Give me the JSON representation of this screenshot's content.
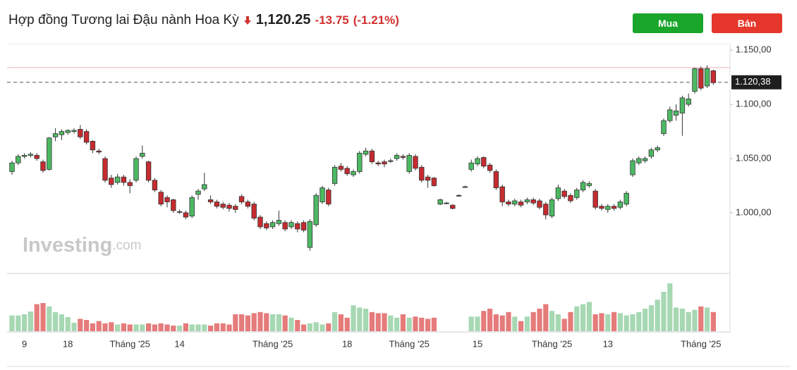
{
  "header": {
    "title": "Hợp đồng Tương lai Đậu nành Hoa Kỳ",
    "price": "1,120.25",
    "change": "-13.75",
    "change_percent": "(-1.21%)"
  },
  "buttons": [
    "Mua",
    "Bán"
  ],
  "watermark": [
    "Investing",
    ".com"
  ],
  "chart_data": {
    "type": "candlestick",
    "categories": [
      null,
      null,
      "9",
      null,
      null,
      null,
      null,
      null,
      null,
      "18",
      null,
      null,
      null,
      null,
      null,
      null,
      null,
      null,
      null,
      "Tháng '25",
      null,
      null,
      null,
      null,
      null,
      null,
      null,
      "14",
      null,
      null,
      null,
      null,
      null,
      null,
      null,
      null,
      null,
      null,
      null,
      null,
      null,
      null,
      "Tháng '25",
      null,
      null,
      null,
      null,
      null,
      null,
      null,
      null,
      null,
      null,
      null,
      "18",
      null,
      null,
      null,
      null,
      null,
      null,
      null,
      null,
      null,
      "Tháng '25",
      null,
      null,
      null,
      null,
      null,
      null,
      null,
      null,
      null,
      null,
      "15",
      null,
      null,
      null,
      null,
      null,
      null,
      null,
      null,
      null,
      null,
      null,
      "Tháng '25",
      null,
      null,
      null,
      null,
      null,
      null,
      null,
      null,
      "13",
      null,
      null,
      null,
      null,
      null,
      null,
      null,
      null,
      null,
      null,
      null,
      null,
      null,
      null,
      "Tháng '25",
      null,
      null
    ],
    "open": [
      1038,
      1046,
      1052,
      1053,
      1053,
      1047,
      1040,
      1070,
      1072,
      1074,
      1075,
      1077,
      1075,
      1066,
      1057,
      1050,
      1032,
      1028,
      1033,
      1028,
      1030,
      1052,
      1047,
      1030,
      1019,
      1014,
      1012,
      1001,
      1000,
      997,
      1017,
      1022,
      1012,
      1010,
      1008,
      1007,
      1006,
      1015,
      1010,
      1008,
      996,
      990,
      987,
      990,
      991,
      987,
      990,
      991,
      968,
      989,
      1010,
      1021,
      1027,
      1043,
      1041,
      1035,
      1038,
      1054,
      1057,
      1046,
      1047,
      1048,
      1050,
      1052,
      1038,
      1052,
      1042,
      1033,
      1032,
      1008,
      1009,
      1007,
      1016,
      1024,
      1040,
      1045,
      1051,
      1044,
      1038,
      1024,
      1010,
      1008,
      1010,
      1010,
      1012,
      1011,
      1008,
      997,
      1013,
      1020,
      1016,
      1014,
      1021,
      1025,
      1020,
      1006,
      1003,
      1006,
      1005,
      1008,
      1035,
      1046,
      1048,
      1052,
      1058,
      1073,
      1085,
      1090,
      1092,
      1100,
      1112,
      1133,
      1117,
      1131
    ],
    "high": [
      1048,
      1054,
      1055,
      1056,
      1055,
      1049,
      1070,
      1078,
      1077,
      1077,
      1078,
      1081,
      1077,
      1067,
      1059,
      1052,
      1035,
      1036,
      1035,
      1031,
      1052,
      1062,
      1048,
      1032,
      1021,
      1016,
      1013,
      1003,
      1002,
      1016,
      1022,
      1037,
      1016,
      1012,
      1010,
      1009,
      1008,
      1017,
      1012,
      1010,
      998,
      992,
      993,
      1002,
      993,
      993,
      992,
      993,
      994,
      1018,
      1025,
      1023,
      1044,
      1046,
      1043,
      1040,
      1057,
      1060,
      1059,
      1048,
      1049,
      1050,
      1055,
      1054,
      1055,
      1054,
      1044,
      1035,
      1033,
      1013,
      1010,
      1008,
      1017,
      1025,
      1049,
      1052,
      1052,
      1046,
      1040,
      1026,
      1012,
      1013,
      1012,
      1014,
      1014,
      1013,
      1010,
      1014,
      1026,
      1022,
      1018,
      1023,
      1030,
      1029,
      1022,
      1008,
      1008,
      1008,
      1012,
      1020,
      1050,
      1052,
      1052,
      1060,
      1062,
      1087,
      1098,
      1100,
      1108,
      1110,
      1134,
      1135,
      1136,
      1132
    ],
    "low": [
      1035,
      1044,
      1050,
      1051,
      1048,
      1037,
      1039,
      1066,
      1067,
      1072,
      1073,
      1068,
      1063,
      1055,
      1054,
      1028,
      1023,
      1026,
      1025,
      1018,
      1028,
      1050,
      1028,
      1019,
      1006,
      1005,
      1000,
      999,
      994,
      995,
      1012,
      1020,
      1008,
      1004,
      1003,
      1001,
      1000,
      1008,
      1004,
      993,
      985,
      984,
      985,
      988,
      983,
      985,
      982,
      982,
      965,
      987,
      1008,
      1006,
      1025,
      1038,
      1034,
      1033,
      1036,
      1052,
      1045,
      1043,
      1042,
      1046,
      1048,
      1049,
      1036,
      1039,
      1028,
      1023,
      1024,
      1007,
      1008,
      1003,
      1015,
      1023,
      1038,
      1043,
      1041,
      1037,
      1021,
      1006,
      1006,
      1006,
      1005,
      1008,
      1007,
      1003,
      994,
      995,
      1011,
      1013,
      1009,
      1012,
      1019,
      1023,
      1003,
      1002,
      1000,
      1002,
      1003,
      1006,
      1033,
      1044,
      1046,
      1050,
      1056,
      1071,
      1083,
      1085,
      1071,
      1098,
      1110,
      1113,
      1115,
      1118
    ],
    "close": [
      1046,
      1052,
      1053,
      1054,
      1050,
      1039,
      1069,
      1073,
      1075,
      1076,
      1076,
      1070,
      1065,
      1058,
      1056,
      1030,
      1026,
      1033,
      1028,
      1025,
      1050,
      1055,
      1030,
      1021,
      1008,
      1010,
      1002,
      1001,
      996,
      1014,
      1020,
      1026,
      1010,
      1006,
      1005,
      1004,
      1003,
      1010,
      1006,
      995,
      987,
      986,
      991,
      993,
      985,
      991,
      985,
      984,
      992,
      1016,
      1023,
      1008,
      1042,
      1040,
      1036,
      1038,
      1055,
      1057,
      1047,
      1045,
      1045,
      1048,
      1053,
      1051,
      1053,
      1041,
      1030,
      1030,
      1025,
      1012,
      1009,
      1004,
      1016,
      1024,
      1046,
      1050,
      1043,
      1039,
      1023,
      1010,
      1008,
      1011,
      1007,
      1012,
      1009,
      1005,
      998,
      1012,
      1023,
      1015,
      1011,
      1021,
      1028,
      1027,
      1005,
      1004,
      1006,
      1004,
      1010,
      1018,
      1048,
      1050,
      1050,
      1058,
      1060,
      1085,
      1095,
      1094,
      1106,
      1105,
      1133,
      1115,
      1133,
      1120
    ],
    "volume": [
      28,
      28,
      30,
      35,
      48,
      50,
      44,
      34,
      30,
      25,
      15,
      22,
      20,
      14,
      18,
      14,
      16,
      12,
      14,
      12,
      12,
      12,
      14,
      12,
      14,
      12,
      10,
      10,
      14,
      12,
      12,
      12,
      10,
      14,
      14,
      12,
      30,
      30,
      28,
      32,
      34,
      32,
      30,
      30,
      28,
      24,
      20,
      12,
      14,
      16,
      12,
      14,
      34,
      30,
      24,
      46,
      42,
      40,
      34,
      32,
      32,
      28,
      24,
      30,
      24,
      26,
      24,
      22,
      24,
      null,
      null,
      null,
      null,
      null,
      26,
      26,
      36,
      40,
      30,
      28,
      34,
      26,
      18,
      26,
      34,
      40,
      48,
      36,
      30,
      22,
      34,
      44,
      48,
      52,
      30,
      32,
      30,
      34,
      32,
      28,
      30,
      34,
      40,
      46,
      56,
      70,
      85,
      42,
      40,
      34,
      38,
      44,
      42,
      34
    ],
    "up_color": "#4cb963",
    "down_color": "#c62b30",
    "doji_color": "#222222",
    "up_volume_color": "#a6d8b3",
    "down_volume_color": "#e57b7b",
    "ylim": [
      944,
      1156
    ],
    "yticks": [
      {
        "value": 1000,
        "label": "1.000,00"
      },
      {
        "value": 1050,
        "label": "1.050,00"
      },
      {
        "value": 1100,
        "label": "1.100,00"
      },
      {
        "value": 1150,
        "label": "1.150,00"
      }
    ],
    "vlim": [
      0,
      100
    ],
    "reference_line": 1134,
    "last_price": {
      "value": 1120.38,
      "label": "1.120,38"
    },
    "grid": false
  }
}
